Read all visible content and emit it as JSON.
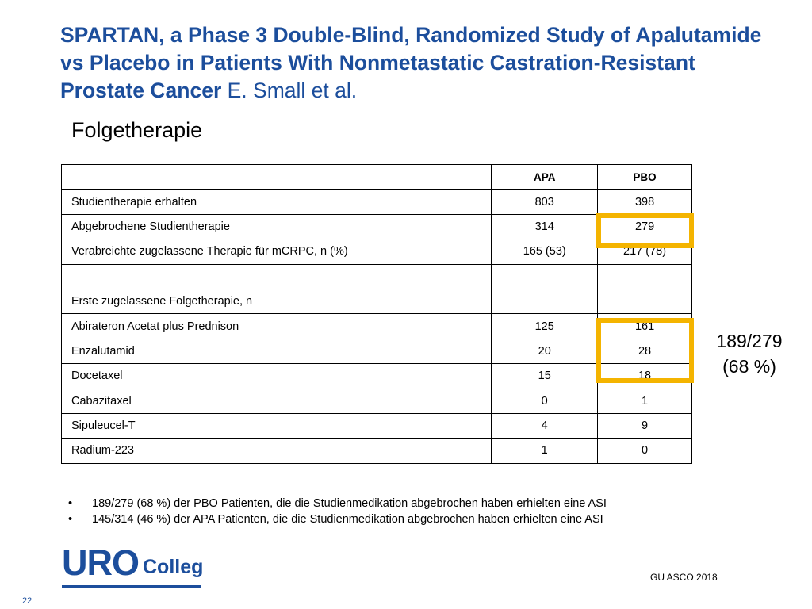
{
  "slide": {
    "title_main": "SPARTAN, a Phase 3 Double-Blind, Randomized Study of Apalutamide vs Placebo in Patients With Nonmetastatic Castration-Resistant Prostate Cancer",
    "title_authors": " E. Small et al.",
    "subtitle": "Folgetherapie",
    "callout_line1": "189/279",
    "callout_line2": "(68 %)",
    "source": "GU ASCO 2018",
    "page_number": "22",
    "logo_uro": "URO",
    "logo_colleg": "Colleg"
  },
  "table": {
    "headers": [
      "",
      "APA",
      "PBO"
    ],
    "rows": [
      [
        "Studientherapie erhalten",
        "803",
        "398"
      ],
      [
        "Abgebrochene Studientherapie",
        "314",
        "279"
      ],
      [
        "Verabreichte zugelassene Therapie für mCRPC, n (%)",
        "165 (53)",
        "217 (78)"
      ],
      [
        "",
        "",
        ""
      ],
      [
        "Erste zugelassene Folgetherapie, n",
        "",
        ""
      ],
      [
        "Abirateron Acetat plus Prednison",
        "125",
        "161"
      ],
      [
        "Enzalutamid",
        "20",
        "28"
      ],
      [
        "Docetaxel",
        "15",
        "18"
      ],
      [
        "Cabazitaxel",
        "0",
        "1"
      ],
      [
        "Sipuleucel-T",
        "4",
        "9"
      ],
      [
        "Radium-223",
        "1",
        "0"
      ]
    ]
  },
  "bullets": [
    "189/279 (68 %) der PBO Patienten, die die Studienmedikation abgebrochen haben erhielten eine ASI",
    "145/314 (46 %) der APA  Patienten, die die Studienmedikation abgebrochen haben erhielten eine ASI"
  ],
  "colors": {
    "title": "#1c4e9c",
    "highlight": "#f4b400"
  }
}
